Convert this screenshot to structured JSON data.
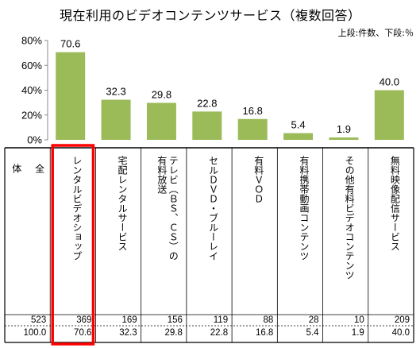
{
  "title": "現在利用のビデオコンテンツサービス（複数回答）",
  "subtitle": "上段:件数、下段:％",
  "colors": {
    "bar": "#9bbb59",
    "highlight": "#ff0000"
  },
  "chart_data": {
    "type": "bar",
    "title": "現在利用のビデオコンテンツサービス（複数回答）",
    "ylim": [
      0,
      80
    ],
    "yticks": [
      "0%",
      "20%",
      "40%",
      "60%",
      "80%"
    ],
    "grid": false,
    "categories": [
      "レンタルビデオショップ",
      "宅配レンタルサービス",
      "テレビ（BS、CS）の有料放送",
      "セルDVD・ブルーレイ",
      "有料VOD",
      "有料携帯動画コンテンツ",
      "その他有料ビデオコンテンツ",
      "無料映像配信サービス"
    ],
    "values": [
      70.6,
      32.3,
      29.8,
      22.8,
      16.8,
      5.4,
      1.9,
      40.0
    ],
    "value_labels": [
      "70.6",
      "32.3",
      "29.8",
      "22.8",
      "16.8",
      "5.4",
      "1.9",
      "40.0"
    ]
  },
  "table": {
    "total_label": "全\n\n体",
    "total_count": "523",
    "total_percent": "100.0",
    "columns": [
      {
        "label": "レンタルビデオショップ",
        "count": "369",
        "percent": "70.6",
        "highlight": true
      },
      {
        "label": "宅配レンタルサービス",
        "count": "169",
        "percent": "32.3"
      },
      {
        "label": "テレビ（ＢＳ、ＣＳ）の\n有料放送",
        "count": "156",
        "percent": "29.8"
      },
      {
        "label": "セルＤＶＤ・ブルーレイ",
        "count": "119",
        "percent": "22.8"
      },
      {
        "label": "有料ＶＯＤ",
        "count": "88",
        "percent": "16.8"
      },
      {
        "label": "有料携帯動画コンテンツ",
        "count": "28",
        "percent": "5.4"
      },
      {
        "label": "その他有料ビデオコンテンツ",
        "count": "10",
        "percent": "1.9"
      },
      {
        "label": "無料映像配信サービス",
        "count": "209",
        "percent": "40.0"
      }
    ]
  }
}
